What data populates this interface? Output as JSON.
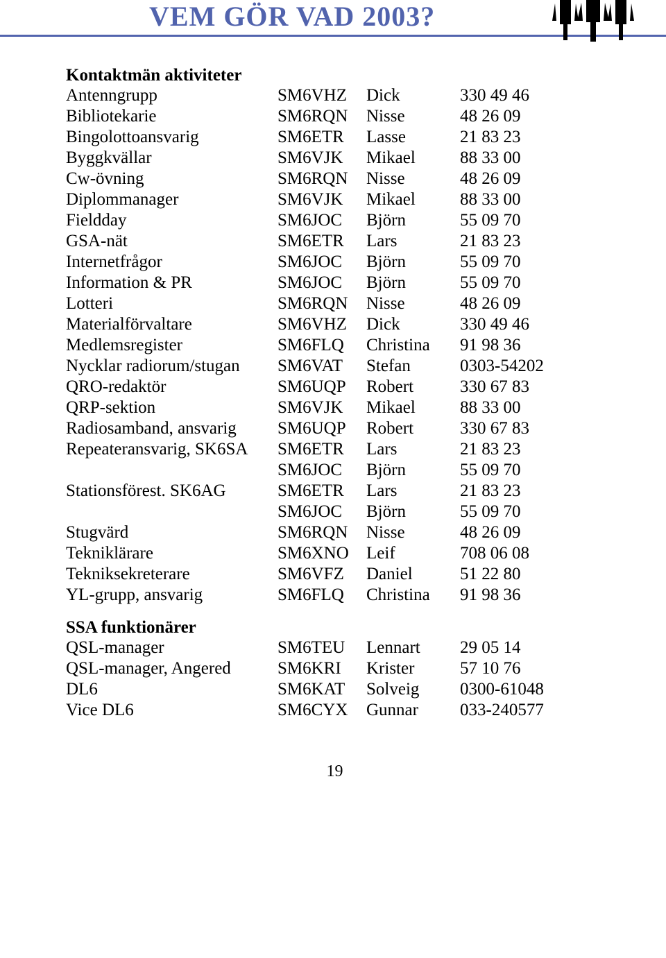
{
  "title": "VEM GÖR VAD  2003?",
  "page_number": "19",
  "sections": [
    {
      "heading": "Kontaktmän aktiviteter",
      "rows": [
        {
          "role": "Antenngrupp",
          "call": "SM6VHZ",
          "name": "Dick",
          "num": "330 49 46"
        },
        {
          "role": "Bibliotekarie",
          "call": "SM6RQN",
          "name": "Nisse",
          "num": "48 26 09"
        },
        {
          "role": "Bingolottoansvarig",
          "call": "SM6ETR",
          "name": "Lasse",
          "num": "21 83 23"
        },
        {
          "role": "Byggkvällar",
          "call": "SM6VJK",
          "name": "Mikael",
          "num": "88 33 00"
        },
        {
          "role": "Cw-övning",
          "call": "SM6RQN",
          "name": "Nisse",
          "num": "48 26 09"
        },
        {
          "role": "Diplommanager",
          "call": "SM6VJK",
          "name": "Mikael",
          "num": "88 33 00"
        },
        {
          "role": "Fieldday",
          "call": "SM6JOC",
          "name": "Björn",
          "num": "55 09 70"
        },
        {
          "role": "GSA-nät",
          "call": "SM6ETR",
          "name": "Lars",
          "num": "21 83 23"
        },
        {
          "role": "Internetfrågor",
          "call": "SM6JOC",
          "name": "Björn",
          "num": "55 09 70"
        },
        {
          "role": "Information & PR",
          "call": "SM6JOC",
          "name": "Björn",
          "num": "55 09 70"
        },
        {
          "role": "Lotteri",
          "call": "SM6RQN",
          "name": "Nisse",
          "num": "48 26 09"
        },
        {
          "role": "Materialförvaltare",
          "call": "SM6VHZ",
          "name": "Dick",
          "num": "330 49 46"
        },
        {
          "role": "Medlemsregister",
          "call": "SM6FLQ",
          "name": "Christina",
          "num": "91 98 36"
        },
        {
          "role": "Nycklar radiorum/stugan",
          "call": "SM6VAT",
          "name": "Stefan",
          "num": "0303-54202"
        },
        {
          "role": "QRO-redaktör",
          "call": "SM6UQP",
          "name": "Robert",
          "num": "330 67 83"
        },
        {
          "role": "QRP-sektion",
          "call": "SM6VJK",
          "name": "Mikael",
          "num": "88 33 00"
        },
        {
          "role": "Radiosamband, ansvarig",
          "call": "SM6UQP",
          "name": "Robert",
          "num": "330 67 83"
        },
        {
          "role": "Repeateransvarig, SK6SA",
          "call": "SM6ETR",
          "name": "Lars",
          "num": "21 83 23"
        },
        {
          "role": "",
          "call": "SM6JOC",
          "name": "Björn",
          "num": "55 09 70"
        },
        {
          "role": "Stationsförest. SK6AG",
          "call": "SM6ETR",
          "name": "Lars",
          "num": "21 83 23"
        },
        {
          "role": "",
          "call": "SM6JOC",
          "name": "Björn",
          "num": "55 09 70"
        },
        {
          "role": "Stugvärd",
          "call": "SM6RQN",
          "name": "Nisse",
          "num": "48 26 09"
        },
        {
          "role": "Tekniklärare",
          "call": "SM6XNO",
          "name": "Leif",
          "num": "708 06 08"
        },
        {
          "role": "Tekniksekreterare",
          "call": "SM6VFZ",
          "name": "Daniel",
          "num": "51 22 80"
        },
        {
          "role": "YL-grupp, ansvarig",
          "call": "SM6FLQ",
          "name": "Christina",
          "num": "91 98 36"
        }
      ]
    },
    {
      "heading": "SSA funktionärer",
      "rows": [
        {
          "role": "QSL-manager",
          "call": "SM6TEU",
          "name": "Lennart",
          "num": "29 05 14"
        },
        {
          "role": "QSL-manager, Angered",
          "call": "SM6KRI",
          "name": "Krister",
          "num": "57 10 76"
        },
        {
          "role": "DL6",
          "call": "SM6KAT",
          "name": "Solveig",
          "num": "0300-61048"
        },
        {
          "role": "Vice DL6",
          "call": "SM6CYX",
          "name": "Gunnar",
          "num": "033-240577"
        }
      ]
    }
  ]
}
